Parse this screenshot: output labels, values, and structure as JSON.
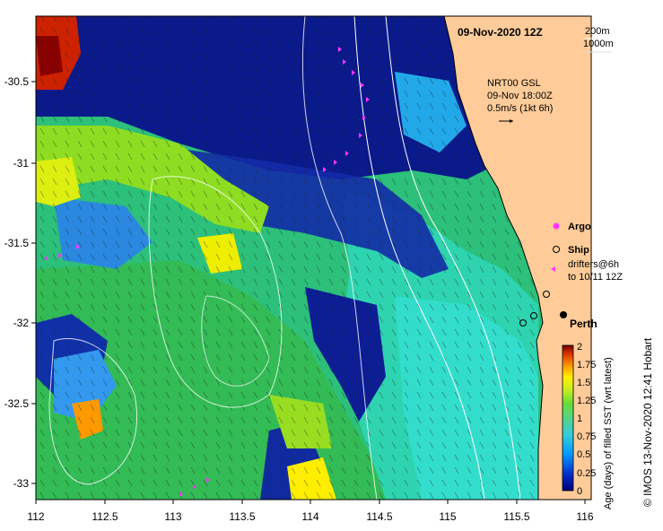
{
  "map": {
    "date_title": "09-Nov-2020 12Z",
    "contours": {
      "depth1": "200m",
      "depth2": "1000m"
    },
    "current_info": {
      "line1": "NRT00 GSL",
      "line2": "09-Nov 18:00Z",
      "line3": "0.5m/s (1kt 6h)"
    },
    "legend": {
      "argo": "Argo",
      "ship": "Ship",
      "drifters1": "drifters@6h",
      "drifters2": "to 10/11 12Z"
    },
    "city": "Perth",
    "credit": "© IMOS 13-Nov-2020 12:41 Hobart",
    "x_ticks": [
      "112",
      "112.5",
      "113",
      "113.5",
      "114",
      "114.5",
      "115",
      "115.5",
      "116"
    ],
    "y_ticks": [
      "-30.5",
      "-31",
      "-31.5",
      "-32",
      "-32.5",
      "-33"
    ],
    "colorbar": {
      "label": "Age (days) of filled SST (wrt latest)",
      "ticks": [
        "0",
        "0.25",
        "0.5",
        "0.75",
        "1",
        "1.25",
        "1.5",
        "1.75",
        "2"
      ]
    },
    "colors": {
      "land": "#ffcc99",
      "deep": "#000080",
      "argo": "#ff33ff",
      "drifter": "#ff33ff"
    }
  },
  "chart_data": {
    "type": "heatmap",
    "title": "09-Nov-2020 12Z",
    "xlabel": "",
    "ylabel": "",
    "xlim": [
      112,
      116
    ],
    "ylim": [
      -33.1,
      -30.2
    ],
    "colorbar_label": "Age (days) of filled SST (wrt latest)",
    "colorbar_range": [
      0,
      2
    ],
    "city": {
      "name": "Perth",
      "lon": 115.86,
      "lat": -31.95
    },
    "ships": [
      {
        "lon": 115.7,
        "lat": -31.85
      },
      {
        "lon": 115.6,
        "lat": -31.95
      },
      {
        "lon": 115.5,
        "lat": -32.0
      }
    ]
  }
}
